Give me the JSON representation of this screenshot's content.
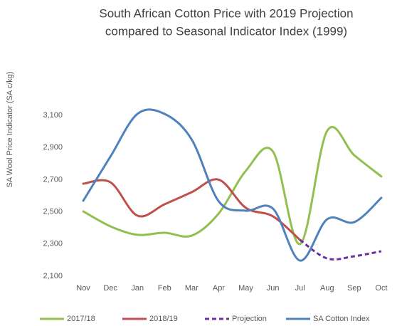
{
  "chart_data": {
    "type": "line",
    "title": [
      "South African Cotton Price with 2019 Projection",
      "compared to Seasonal Indicator Index (1999)"
    ],
    "y_label": "SA Wool Price Indicator (SA c/kg)",
    "categories": [
      "Nov",
      "Dec",
      "Jan",
      "Feb",
      "Mar",
      "Apr",
      "May",
      "Jun",
      "Jul",
      "Aug",
      "Sep",
      "Oct"
    ],
    "series": [
      {
        "name": "2017/18",
        "color": "#92c050",
        "dashed": false,
        "values": [
          2503,
          2410,
          2357,
          2370,
          2352,
          2490,
          2755,
          2875,
          2300,
          3003,
          2852,
          2720
        ]
      },
      {
        "name": "2018/19",
        "color": "#c0504d",
        "dashed": false,
        "values": [
          2675,
          2684,
          2476,
          2547,
          2622,
          2700,
          2525,
          2472,
          2325,
          null,
          null,
          null
        ]
      },
      {
        "name": "Projection",
        "color": "#7030a0",
        "dashed": true,
        "values": [
          null,
          null,
          null,
          null,
          null,
          null,
          null,
          null,
          2325,
          2210,
          2224,
          2255
        ]
      },
      {
        "name": "SA Cotton Index",
        "color": "#4f81bd",
        "dashed": false,
        "values": [
          2569,
          2843,
          3109,
          3109,
          2950,
          2565,
          2507,
          2520,
          2197,
          2454,
          2436,
          2587
        ]
      }
    ],
    "ylim": [
      2100,
      3200
    ],
    "yticks": [
      {
        "value": 2100,
        "label": "2,100"
      },
      {
        "value": 2300,
        "label": "2,300"
      },
      {
        "value": 2500,
        "label": "2,500"
      },
      {
        "value": 2700,
        "label": "2,700"
      },
      {
        "value": 2900,
        "label": "2,900"
      },
      {
        "value": 3100,
        "label": "3,100"
      }
    ],
    "grid": false,
    "legend": "bottom"
  }
}
